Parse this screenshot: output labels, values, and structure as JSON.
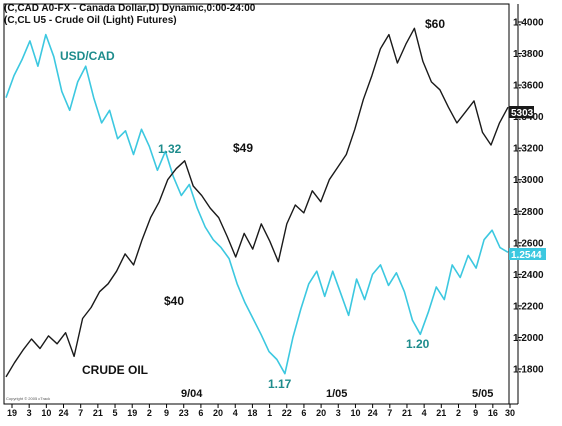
{
  "header": {
    "line1": "(C,CAD A0-FX - Canada Dollar,D) Dynamic,0:00-24:00",
    "line2": "(C,CL U5 - Crude Oil (Light) Futures)"
  },
  "colors": {
    "usdcad": "#3cc8e0",
    "crude": "#1a1a1a",
    "usdcad_label": "#1e8c8c",
    "crude_label": "#111111",
    "frame": "#000000"
  },
  "chart_data": {
    "type": "line",
    "ylim": [
      1.16,
      1.41
    ],
    "y_ticks": [
      "1.4000",
      "1.3800",
      "1.3600",
      "1.3400",
      "1.3200",
      "1.3000",
      "1.2800",
      "1.2600",
      "1.2400",
      "1.2200",
      "1.2000",
      "1.1800"
    ],
    "y_tick_values": [
      1.4,
      1.38,
      1.36,
      1.34,
      1.32,
      1.3,
      1.28,
      1.26,
      1.24,
      1.22,
      1.2,
      1.18
    ],
    "x_tick_labels": [
      "19",
      "3",
      "10",
      "24",
      "7",
      "21",
      "5",
      "19",
      "2",
      "9",
      "23",
      "6",
      "20",
      "4",
      "18",
      "1",
      "22",
      "6",
      "20",
      "3",
      "10",
      "24",
      "7",
      "21",
      "4",
      "21",
      "2",
      "9",
      "16",
      "30"
    ],
    "period_labels": [
      "9/04",
      "1/05",
      "5/05"
    ],
    "series": [
      {
        "name": "USD/CAD",
        "last_value": "1.2544",
        "values": [
          1.352,
          1.366,
          1.376,
          1.388,
          1.372,
          1.392,
          1.378,
          1.356,
          1.344,
          1.362,
          1.372,
          1.352,
          1.336,
          1.344,
          1.326,
          1.331,
          1.316,
          1.332,
          1.321,
          1.306,
          1.318,
          1.302,
          1.29,
          1.297,
          1.282,
          1.27,
          1.262,
          1.257,
          1.25,
          1.234,
          1.222,
          1.212,
          1.202,
          1.191,
          1.186,
          1.177,
          1.2,
          1.218,
          1.234,
          1.242,
          1.226,
          1.242,
          1.228,
          1.214,
          1.237,
          1.224,
          1.24,
          1.246,
          1.233,
          1.241,
          1.229,
          1.211,
          1.202,
          1.216,
          1.232,
          1.224,
          1.246,
          1.238,
          1.252,
          1.244,
          1.262,
          1.268,
          1.257,
          1.254
        ]
      },
      {
        "name": "CRUDE OIL",
        "values": [
          1.175,
          1.184,
          1.192,
          1.199,
          1.193,
          1.201,
          1.196,
          1.203,
          1.188,
          1.212,
          1.219,
          1.229,
          1.234,
          1.242,
          1.253,
          1.246,
          1.262,
          1.276,
          1.286,
          1.3,
          1.307,
          1.312,
          1.296,
          1.29,
          1.282,
          1.276,
          1.264,
          1.251,
          1.266,
          1.256,
          1.272,
          1.261,
          1.248,
          1.272,
          1.284,
          1.279,
          1.293,
          1.286,
          1.3,
          1.308,
          1.316,
          1.332,
          1.351,
          1.366,
          1.383,
          1.392,
          1.374,
          1.386,
          1.396,
          1.375,
          1.362,
          1.357,
          1.346,
          1.336,
          1.343,
          1.35,
          1.33,
          1.322,
          1.336,
          1.346
        ]
      }
    ],
    "annotations": [
      {
        "text": "USD/CAD",
        "series": "usdcad"
      },
      {
        "text": "1.32",
        "series": "usdcad"
      },
      {
        "text": "1.17",
        "series": "usdcad"
      },
      {
        "text": "1.20",
        "series": "usdcad"
      },
      {
        "text": "$49",
        "series": "crude"
      },
      {
        "text": "$40",
        "series": "crude"
      },
      {
        "text": "$60",
        "series": "crude"
      },
      {
        "text": "CRUDE OIL",
        "series": "crude"
      }
    ],
    "overlay_value_label": "5303",
    "grid": false
  },
  "copyright": "Copyright © 2005 cTrack"
}
